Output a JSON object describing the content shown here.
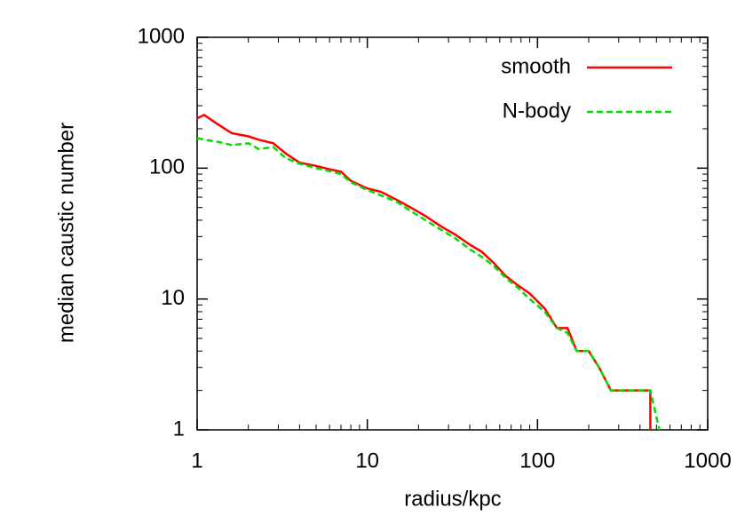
{
  "chart_data": {
    "type": "line",
    "log_x": true,
    "log_y": true,
    "xlabel": "radius/kpc",
    "ylabel": "median caustic number",
    "xlim": [
      1,
      1000
    ],
    "ylim": [
      1,
      1000
    ],
    "xticks": [
      1,
      10,
      100,
      1000
    ],
    "yticks": [
      1,
      10,
      100,
      1000
    ],
    "legend": "top-right",
    "series": [
      {
        "name": "smooth",
        "color": "#ff0000",
        "dash": false,
        "x": [
          1,
          1.1,
          1.3,
          1.6,
          2,
          2.3,
          2.8,
          3.3,
          4,
          5,
          6,
          7,
          8,
          10,
          12,
          15,
          18,
          22,
          27,
          33,
          40,
          47,
          55,
          65,
          75,
          90,
          110,
          130,
          150,
          170,
          200,
          230,
          270,
          330,
          400,
          460,
          460
        ],
        "values": [
          240,
          255,
          220,
          185,
          175,
          165,
          155,
          130,
          110,
          104,
          98,
          94,
          80,
          70,
          66,
          57,
          50,
          43,
          36,
          31,
          26,
          23,
          19,
          15,
          13,
          11,
          8.5,
          6,
          6,
          4,
          4,
          3,
          2,
          2,
          2,
          2,
          1
        ]
      },
      {
        "name": "N-body",
        "color": "#00dd00",
        "dash": true,
        "x": [
          1,
          1.1,
          1.3,
          1.6,
          2,
          2.3,
          2.8,
          3.3,
          4,
          5,
          6,
          7,
          8,
          10,
          12,
          15,
          18,
          22,
          27,
          33,
          40,
          47,
          55,
          65,
          75,
          90,
          110,
          130,
          150,
          170,
          200,
          230,
          270,
          330,
          400,
          460,
          520
        ],
        "values": [
          170,
          165,
          160,
          150,
          155,
          140,
          145,
          120,
          108,
          100,
          95,
          90,
          78,
          68,
          62,
          55,
          47,
          40,
          34,
          29,
          24,
          21,
          18,
          14.5,
          12.5,
          10,
          8,
          6,
          5.5,
          4,
          4,
          3,
          2,
          2,
          2,
          2,
          1
        ]
      }
    ]
  }
}
